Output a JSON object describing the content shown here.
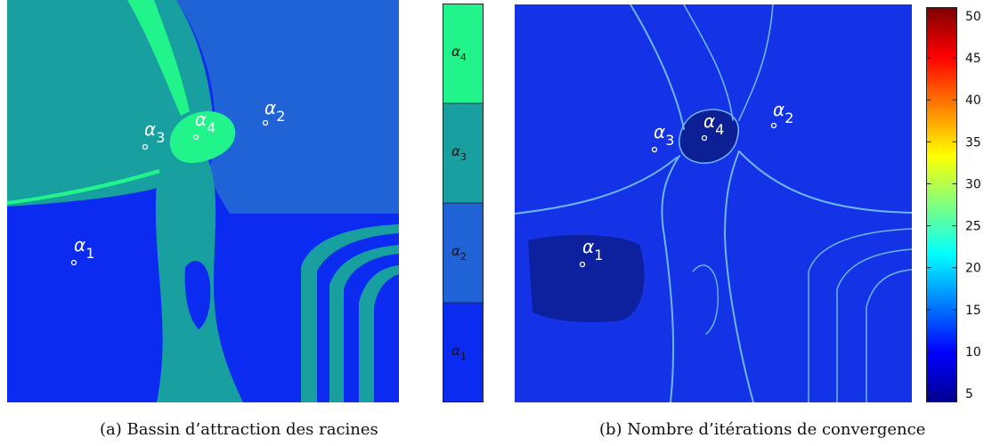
{
  "captions": {
    "a": "(a) Bassin d’attraction des racines",
    "b": "(b) Nombre d’itérations de convergence"
  },
  "roots": [
    {
      "symbol": "α",
      "index": "1"
    },
    {
      "symbol": "α",
      "index": "2"
    },
    {
      "symbol": "α",
      "index": "3"
    },
    {
      "symbol": "α",
      "index": "4"
    }
  ],
  "colors": {
    "alpha1": "#0b2bf0",
    "alpha2": "#1f63d6",
    "alpha3": "#189f9f",
    "alpha4": "#20f48a",
    "iter_background": "#1432e6",
    "iter_dark": "#0b1d8c",
    "iter_line": "#6fb6ff"
  },
  "chart_data": [
    {
      "type": "heatmap",
      "title": "",
      "legend": {
        "type": "categorical",
        "labels": [
          "α1",
          "α2",
          "α3",
          "α4"
        ],
        "colors": [
          "#0b2bf0",
          "#1f63d6",
          "#189f9f",
          "#20f48a"
        ],
        "placement": "right"
      }
    },
    {
      "type": "heatmap",
      "title": "",
      "colorbar": {
        "ticks": [
          5,
          10,
          15,
          20,
          25,
          30,
          35,
          40,
          45,
          50
        ],
        "range": [
          4,
          51
        ],
        "colormap": "jet",
        "placement": "right"
      }
    }
  ]
}
